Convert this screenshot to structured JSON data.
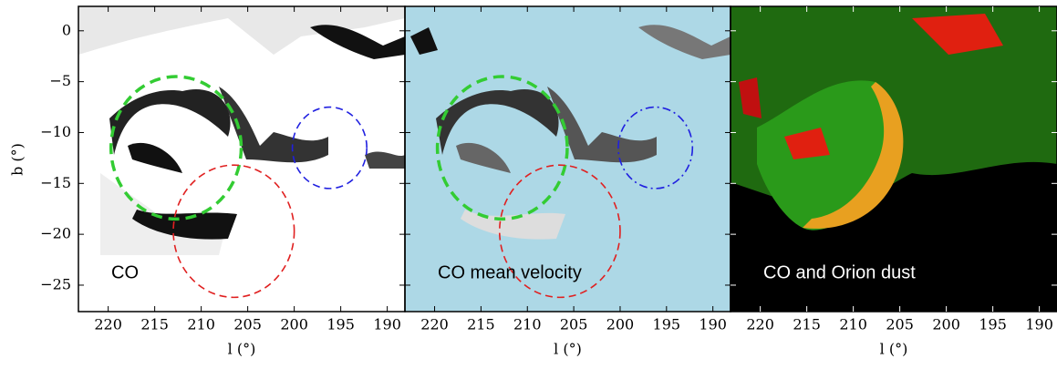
{
  "chart_data": {
    "type": "image-panels",
    "xlabel": "l (°)",
    "ylabel": "b (°)",
    "xlim": [
      223.2,
      188.1
    ],
    "ylim": [
      -27.6,
      2.4
    ],
    "xticks": [
      220,
      215,
      210,
      205,
      200,
      195,
      190
    ],
    "yticks": [
      0,
      {
        "value": -5,
        "label": "−5"
      },
      {
        "value": -10,
        "label": "−10"
      },
      {
        "value": -15,
        "label": "−15"
      },
      {
        "value": -20,
        "label": "−20"
      },
      {
        "value": -25,
        "label": "−25"
      }
    ],
    "panels": [
      {
        "label": "CO",
        "background": "#ffffff",
        "circles": [
          {
            "l": 212.7,
            "b": -11.5,
            "r": 7,
            "color": "#33cc33",
            "dash": "bold"
          },
          {
            "l": 206.5,
            "b": -19.7,
            "r": 6.5,
            "color": "#e02020",
            "dash": "thin"
          },
          {
            "l": 196.2,
            "b": -11.5,
            "r": 4,
            "color": "#2020e0",
            "dash": "thin"
          }
        ]
      },
      {
        "label": "CO mean velocity",
        "background": "#add8e6",
        "circles": [
          {
            "l": 212.7,
            "b": -11.5,
            "r": 7,
            "color": "#33cc33",
            "dash": "bold"
          },
          {
            "l": 206.5,
            "b": -19.7,
            "r": 6.5,
            "color": "#e02020",
            "dash": "thin"
          },
          {
            "l": 196.2,
            "b": -11.5,
            "r": 4,
            "color": "#2020e0",
            "dash": "dashdot"
          }
        ]
      },
      {
        "label": "CO and Orion dust",
        "background": "#000000",
        "circles": []
      }
    ]
  }
}
